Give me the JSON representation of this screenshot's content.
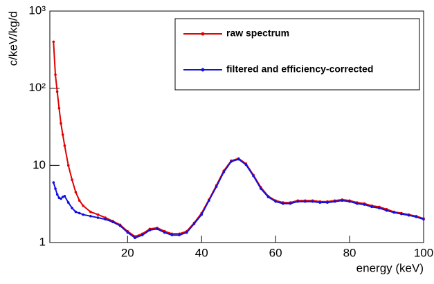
{
  "chart_data": {
    "type": "line",
    "xlabel": "energy (keV)",
    "ylabel": "c/keV/kg/d",
    "xlim": [
      -1,
      100
    ],
    "ylim": [
      1,
      1000
    ],
    "log_y": true,
    "xticks": [
      20,
      40,
      60,
      80,
      100
    ],
    "yticks": [
      1,
      10,
      {
        "value": 100,
        "label": "10²"
      },
      {
        "value": 1000,
        "label": "10³"
      }
    ],
    "legend": "upper right",
    "x": [
      0,
      0.5,
      1,
      1.5,
      2,
      2.5,
      3,
      4,
      5,
      6,
      7,
      8,
      10,
      12,
      14,
      16,
      18,
      20,
      22,
      24,
      26,
      28,
      30,
      32,
      34,
      36,
      38,
      40,
      42,
      44,
      46,
      48,
      50,
      52,
      54,
      56,
      58,
      60,
      62,
      64,
      66,
      68,
      70,
      72,
      74,
      76,
      78,
      80,
      82,
      84,
      86,
      88,
      90,
      92,
      94,
      96,
      98,
      100
    ],
    "series": [
      {
        "name": "raw spectrum",
        "color": "#e00000",
        "values": [
          400,
          150,
          90,
          55,
          35,
          25,
          18,
          10,
          6.5,
          4.5,
          3.5,
          3.0,
          2.5,
          2.3,
          2.1,
          1.9,
          1.7,
          1.4,
          1.2,
          1.3,
          1.5,
          1.55,
          1.4,
          1.3,
          1.3,
          1.4,
          1.8,
          2.4,
          3.6,
          5.5,
          8.5,
          11.5,
          12.3,
          10.5,
          7.5,
          5.2,
          4.0,
          3.5,
          3.3,
          3.3,
          3.5,
          3.5,
          3.5,
          3.4,
          3.4,
          3.5,
          3.6,
          3.5,
          3.3,
          3.2,
          3.0,
          2.9,
          2.7,
          2.5,
          2.4,
          2.3,
          2.2,
          2.05
        ]
      },
      {
        "name": "filtered and efficiency-corrected",
        "color": "#1010e0",
        "values": [
          6,
          5,
          4.2,
          3.8,
          3.7,
          3.9,
          4.0,
          3.3,
          2.8,
          2.5,
          2.4,
          2.3,
          2.2,
          2.1,
          2.0,
          1.85,
          1.65,
          1.35,
          1.15,
          1.25,
          1.45,
          1.5,
          1.35,
          1.25,
          1.25,
          1.35,
          1.75,
          2.3,
          3.5,
          5.3,
          8.2,
          11.2,
          12.0,
          10.2,
          7.3,
          5.0,
          3.9,
          3.4,
          3.2,
          3.2,
          3.4,
          3.4,
          3.4,
          3.3,
          3.3,
          3.4,
          3.5,
          3.4,
          3.2,
          3.1,
          2.9,
          2.8,
          2.6,
          2.45,
          2.35,
          2.25,
          2.15,
          2.0
        ]
      }
    ]
  }
}
